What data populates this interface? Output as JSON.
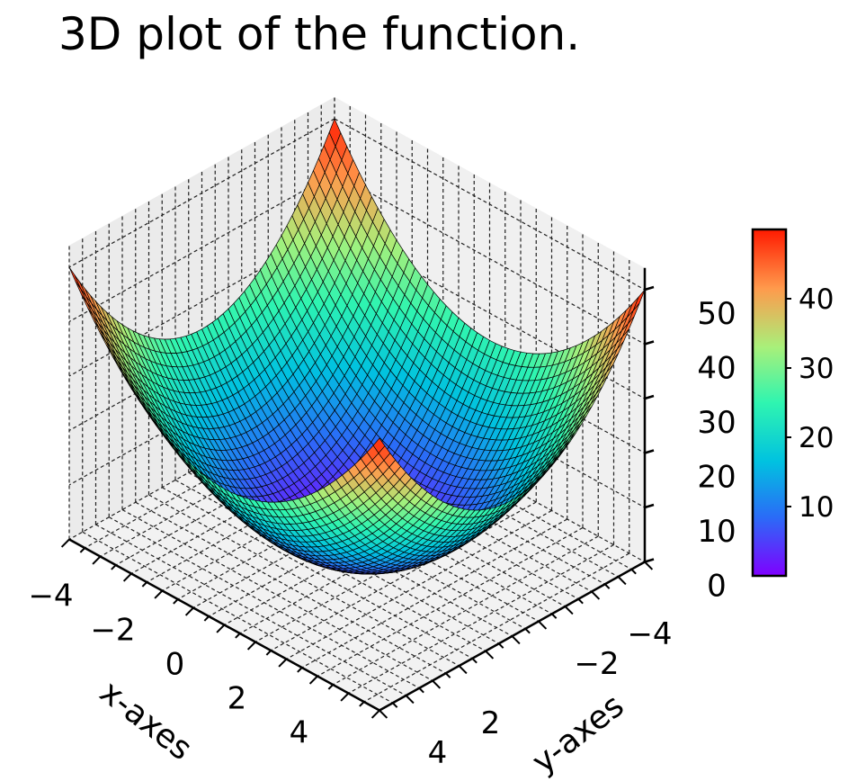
{
  "chart_data": {
    "type": "surface3d",
    "title": "3D plot of the function.",
    "function": "z = x^2 + y^2",
    "x": [
      -5,
      -4.5,
      -4,
      -3.5,
      -3,
      -2.5,
      -2,
      -1.5,
      -1,
      -0.5,
      0,
      0.5,
      1,
      1.5,
      2,
      2.5,
      3,
      3.5,
      4,
      4.5,
      5
    ],
    "y": [
      -5,
      -4.5,
      -4,
      -3.5,
      -3,
      -2.5,
      -2,
      -1.5,
      -1,
      -0.5,
      0,
      0.5,
      1,
      1.5,
      2,
      2.5,
      3,
      3.5,
      4,
      4.5,
      5
    ],
    "xlabel": "x-axes",
    "ylabel": "y-axes",
    "zlabel": "",
    "xlim": [
      -5,
      5
    ],
    "ylim": [
      -5,
      5
    ],
    "zlim": [
      0,
      54
    ],
    "x_ticks": [
      "−4",
      "−2",
      "0",
      "2",
      "4"
    ],
    "y_ticks": [
      "−4",
      "−2",
      "2",
      "4"
    ],
    "y_tick_values": [
      -4,
      -2,
      2,
      4
    ],
    "z_ticks": [
      "0",
      "10",
      "20",
      "30",
      "40",
      "50"
    ],
    "colormap": "rainbow",
    "colorbar": {
      "ticks": [
        "10",
        "20",
        "30",
        "40"
      ],
      "range": [
        0,
        50
      ],
      "label": ""
    },
    "grid": true,
    "colors": {
      "low": "#6a1bff",
      "mid": "#1ee6c8",
      "high": "#ff1a00"
    }
  }
}
